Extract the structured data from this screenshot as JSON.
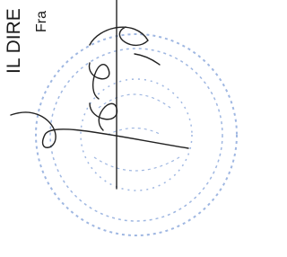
{
  "document": {
    "lines": [
      "IL DIRE",
      "Fra"
    ]
  }
}
